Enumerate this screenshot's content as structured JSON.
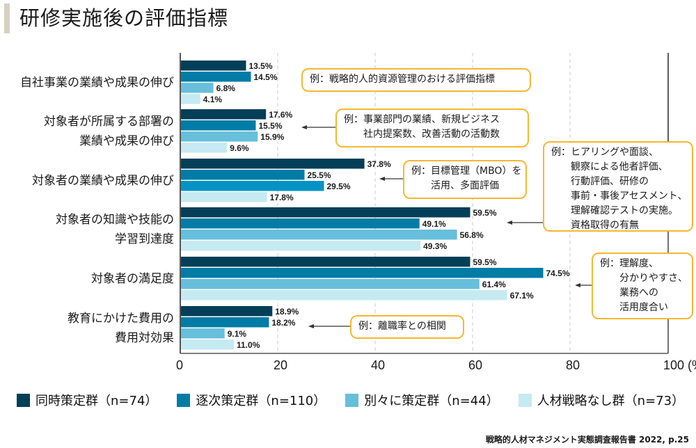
{
  "title": "研修実施後の評価指標",
  "chart_data": {
    "type": "bar",
    "orientation": "horizontal",
    "title": "研修実施後の評価指標",
    "xlabel": "",
    "ylabel": "",
    "xlim": [
      0,
      100
    ],
    "x_ticks": [
      "0",
      "20",
      "40",
      "60",
      "80",
      "100 (%)"
    ],
    "x_tick_values": [
      0,
      20,
      40,
      60,
      80,
      100
    ],
    "grid": true,
    "legend_position": "bottom",
    "categories": [
      "自社事業の業績や成果の伸び",
      "対象者が所属する部署の\n業績や成果の伸び",
      "対象者の業績や成果の伸び",
      "対象者の知識や技能の\n学習到達度",
      "対象者の満足度",
      "教育にかけた費用の\n費用対効果"
    ],
    "series": [
      {
        "name": "同時策定群（n=74）",
        "color": "#033f58",
        "values": [
          13.5,
          17.6,
          37.8,
          59.5,
          59.5,
          18.9
        ]
      },
      {
        "name": "逐次策定群（n=110）",
        "color": "#007ca6",
        "values": [
          14.5,
          15.5,
          25.5,
          49.1,
          74.5,
          18.2
        ]
      },
      {
        "name": "別々に策定群（n=44）",
        "color": "#67bfdb",
        "values": [
          6.8,
          15.9,
          29.5,
          56.8,
          61.4,
          9.1
        ]
      },
      {
        "name": "人材戦略なし群（n=73）",
        "color": "#c5eaf2",
        "values": [
          4.1,
          9.6,
          17.8,
          49.3,
          67.1,
          11.0
        ]
      }
    ],
    "value_labels": [
      [
        "13.5%",
        "14.5%",
        "6.8%",
        "4.1%"
      ],
      [
        "17.6%",
        "15.5%",
        "15.9%",
        "9.6%"
      ],
      [
        "37.8%",
        "25.5%",
        "29.5%",
        "17.8%"
      ],
      [
        "59.5%",
        "49.1%",
        "56.8%",
        "49.3%"
      ],
      [
        "59.5%",
        "74.5%",
        "61.4%",
        "67.1%"
      ],
      [
        "18.9%",
        "18.2%",
        "9.1%",
        "11.0%"
      ]
    ],
    "annotations": [
      {
        "category_index": 0,
        "text": "例：戦略的人的資源管理のおける評価指標"
      },
      {
        "category_index": 1,
        "text": "例：事業部門の業績、新規ビジネス\n　　社内提案数、改善活動の活動数"
      },
      {
        "category_index": 2,
        "text": "例：目標管理（MBO）を\n　　活用、多面評価"
      },
      {
        "category_index": 3,
        "text": "例：ヒアリングや面談、\n　　観察による他者評価、\n　　行動評価、研修の\n　　事前・事後アセスメント、\n　　理解確認テストの実施。\n　　資格取得の有無"
      },
      {
        "category_index": 4,
        "text": "例：理解度、\n　　分かりやすさ、\n　　業務への\n　　活用度合い"
      },
      {
        "category_index": 5,
        "text": "例：離職率との相関"
      }
    ]
  },
  "source": "戦略的人材マネジメント実態調査報告書 2022, p.25"
}
